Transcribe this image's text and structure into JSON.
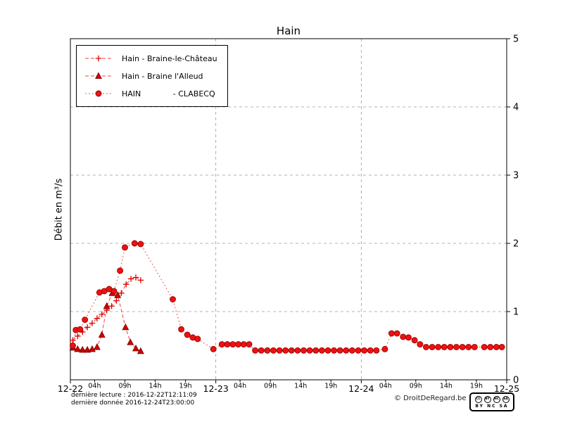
{
  "chart_data": {
    "type": "line",
    "title": "Hain",
    "xlabel": "",
    "ylabel": "Débit en m³/s",
    "xlim": [
      0,
      72
    ],
    "ylim": [
      0,
      5
    ],
    "grid": {
      "h_values": [
        1,
        2,
        3,
        4
      ],
      "v_hours": [
        24,
        48
      ],
      "style": "dashed"
    },
    "legend_position": "top-left",
    "y_ticks": [
      0,
      1,
      2,
      3,
      4,
      5
    ],
    "x_ticks": [
      {
        "h": 0,
        "label": "12-22",
        "major": true
      },
      {
        "h": 4,
        "label": "04h",
        "major": false
      },
      {
        "h": 9,
        "label": "09h",
        "major": false
      },
      {
        "h": 14,
        "label": "14h",
        "major": false
      },
      {
        "h": 19,
        "label": "19h",
        "major": false
      },
      {
        "h": 24,
        "label": "12-23",
        "major": true
      },
      {
        "h": 28,
        "label": "04h",
        "major": false
      },
      {
        "h": 33,
        "label": "09h",
        "major": false
      },
      {
        "h": 38,
        "label": "14h",
        "major": false
      },
      {
        "h": 43,
        "label": "19h",
        "major": false
      },
      {
        "h": 48,
        "label": "12-24",
        "major": true
      },
      {
        "h": 52,
        "label": "04h",
        "major": false
      },
      {
        "h": 57,
        "label": "09h",
        "major": false
      },
      {
        "h": 62,
        "label": "14h",
        "major": false
      },
      {
        "h": 67,
        "label": "19h",
        "major": false
      },
      {
        "h": 72,
        "label": "12-25",
        "major": true
      }
    ],
    "series": [
      {
        "name": "hain-braine-le-chateau",
        "label": "Hain - Braine-le-Château",
        "marker": "plus",
        "color": "#dd0000",
        "edge_color": "#8b0000",
        "line_color": "#e84545",
        "dash": "5 3",
        "points": [
          [
            0.4,
            0.58
          ],
          [
            1.2,
            0.64
          ],
          [
            2.0,
            0.7
          ],
          [
            2.8,
            0.77
          ],
          [
            3.6,
            0.83
          ],
          [
            4.4,
            0.9
          ],
          [
            5.2,
            0.96
          ],
          [
            6.0,
            1.02
          ],
          [
            6.8,
            1.08
          ],
          [
            7.6,
            1.16
          ],
          [
            8.4,
            1.27
          ],
          [
            9.2,
            1.4
          ],
          [
            10.0,
            1.48
          ],
          [
            10.8,
            1.5
          ],
          [
            11.6,
            1.46
          ]
        ]
      },
      {
        "name": "hain-braine-l-alleud",
        "label": "Hain - Braine l'Alleud",
        "marker": "triangle",
        "color": "#cc0000",
        "edge_color": "#7a0000",
        "line_color": "#e84545",
        "dash": "5 3",
        "points": [
          [
            0.4,
            0.47
          ],
          [
            1.2,
            0.45
          ],
          [
            2.0,
            0.44
          ],
          [
            2.8,
            0.44
          ],
          [
            3.6,
            0.45
          ],
          [
            4.4,
            0.48
          ],
          [
            5.2,
            0.66
          ],
          [
            6.0,
            1.08
          ],
          [
            6.9,
            1.27
          ],
          [
            7.8,
            1.24
          ],
          [
            9.1,
            0.77
          ],
          [
            9.9,
            0.55
          ],
          [
            10.8,
            0.46
          ],
          [
            11.6,
            0.42
          ]
        ]
      },
      {
        "name": "hain-clabecq",
        "label": "HAIN             - CLABECQ",
        "marker": "circle",
        "color": "#ee1111",
        "edge_color": "#990000",
        "line_color": "#ef5350",
        "dash": "2 3",
        "points": [
          [
            0.4,
            0.5
          ],
          [
            0.9,
            0.73
          ],
          [
            1.6,
            0.74
          ],
          [
            2.4,
            0.88
          ],
          [
            4.8,
            1.28
          ],
          [
            5.6,
            1.3
          ],
          [
            6.4,
            1.33
          ],
          [
            7.2,
            1.3
          ],
          [
            8.2,
            1.6
          ],
          [
            9.0,
            1.94
          ],
          [
            10.6,
            2.0
          ],
          [
            11.6,
            1.99
          ],
          [
            16.9,
            1.18
          ],
          [
            18.3,
            0.74
          ],
          [
            19.3,
            0.66
          ],
          [
            20.2,
            0.62
          ],
          [
            21.0,
            0.6
          ],
          [
            23.6,
            0.45
          ],
          [
            25.0,
            0.52
          ],
          [
            25.9,
            0.52
          ],
          [
            26.8,
            0.52
          ],
          [
            27.7,
            0.52
          ],
          [
            28.6,
            0.52
          ],
          [
            29.5,
            0.52
          ],
          [
            30.5,
            0.43
          ],
          [
            31.5,
            0.43
          ],
          [
            32.5,
            0.43
          ],
          [
            33.5,
            0.43
          ],
          [
            34.5,
            0.43
          ],
          [
            35.5,
            0.43
          ],
          [
            36.5,
            0.43
          ],
          [
            37.5,
            0.43
          ],
          [
            38.5,
            0.43
          ],
          [
            39.5,
            0.43
          ],
          [
            40.5,
            0.43
          ],
          [
            41.5,
            0.43
          ],
          [
            42.5,
            0.43
          ],
          [
            43.5,
            0.43
          ],
          [
            44.5,
            0.43
          ],
          [
            45.5,
            0.43
          ],
          [
            46.5,
            0.43
          ],
          [
            47.5,
            0.43
          ],
          [
            48.5,
            0.43
          ],
          [
            49.5,
            0.43
          ],
          [
            50.5,
            0.43
          ],
          [
            51.9,
            0.45
          ],
          [
            53.0,
            0.68
          ],
          [
            53.9,
            0.68
          ],
          [
            54.9,
            0.63
          ],
          [
            55.8,
            0.62
          ],
          [
            56.8,
            0.58
          ],
          [
            57.7,
            0.52
          ],
          [
            58.7,
            0.48
          ],
          [
            59.7,
            0.48
          ],
          [
            60.7,
            0.48
          ],
          [
            61.7,
            0.48
          ],
          [
            62.7,
            0.48
          ],
          [
            63.7,
            0.48
          ],
          [
            64.7,
            0.48
          ],
          [
            65.7,
            0.48
          ],
          [
            66.7,
            0.48
          ],
          [
            68.3,
            0.48
          ],
          [
            69.3,
            0.48
          ],
          [
            70.3,
            0.48
          ],
          [
            71.2,
            0.48
          ]
        ]
      }
    ]
  },
  "footer": {
    "last_read": "dernière lecture : 2016-12-22T12:11:09",
    "last_data": "dernière donnée  2016-12-24T23:00:00",
    "copyright": "© DroitDeRegard.be",
    "cc": {
      "icons": [
        "CC",
        "BY",
        "NC",
        "SA"
      ],
      "terms": "BY NC SA"
    }
  }
}
